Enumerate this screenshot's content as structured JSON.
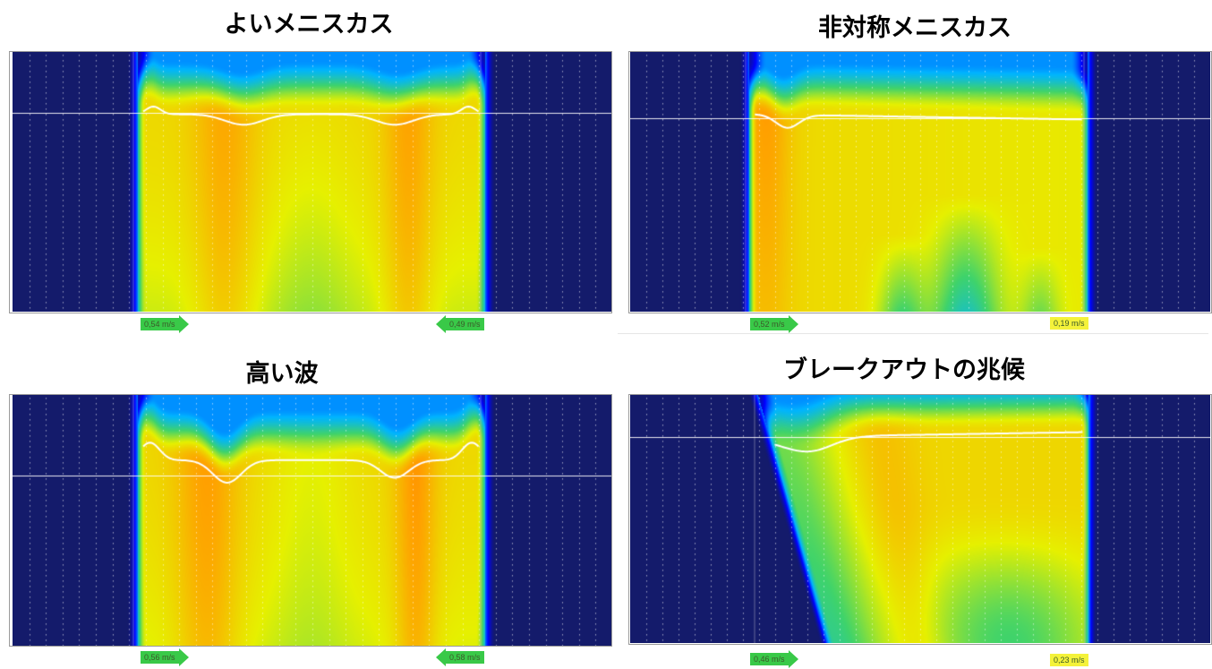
{
  "chart_data": [
    {
      "type": "heatmap",
      "title": "よいメニスカス",
      "speeds": [
        {
          "value": "0,54 m/s",
          "color": "#39c948",
          "direction": "right"
        },
        {
          "value": "0,49 m/s",
          "color": "#39c948",
          "direction": "left"
        }
      ],
      "colormap": [
        "#141b6b",
        "#0000ff",
        "#00b4ff",
        "#3fd36b",
        "#e6f000",
        "#ffa000",
        "#ff1e00"
      ]
    },
    {
      "type": "heatmap",
      "title": "非対称メニスカス",
      "speeds": [
        {
          "value": "0,52 m/s",
          "color": "#39c948",
          "direction": "right"
        },
        {
          "value": "0,19 m/s",
          "color": "#f4f23a",
          "direction": "none"
        }
      ],
      "colormap": [
        "#141b6b",
        "#0000ff",
        "#00b4ff",
        "#3fd36b",
        "#e6f000",
        "#ffa000",
        "#ff1e00"
      ]
    },
    {
      "type": "heatmap",
      "title": "高い波",
      "speeds": [
        {
          "value": "0,56 m/s",
          "color": "#39c948",
          "direction": "right"
        },
        {
          "value": "0,58 m/s",
          "color": "#39c948",
          "direction": "left"
        }
      ],
      "colormap": [
        "#141b6b",
        "#0000ff",
        "#00b4ff",
        "#3fd36b",
        "#e6f000",
        "#ffa000",
        "#ff1e00"
      ]
    },
    {
      "type": "heatmap",
      "title": "ブレークアウトの兆候",
      "speeds": [
        {
          "value": "0,46 m/s",
          "color": "#39c948",
          "direction": "right"
        },
        {
          "value": "0,23 m/s",
          "color": "#f4f23a",
          "direction": "none"
        }
      ],
      "colormap": [
        "#141b6b",
        "#0000ff",
        "#00b4ff",
        "#3fd36b",
        "#e6f000",
        "#ffa000",
        "#ff1e00"
      ]
    }
  ]
}
